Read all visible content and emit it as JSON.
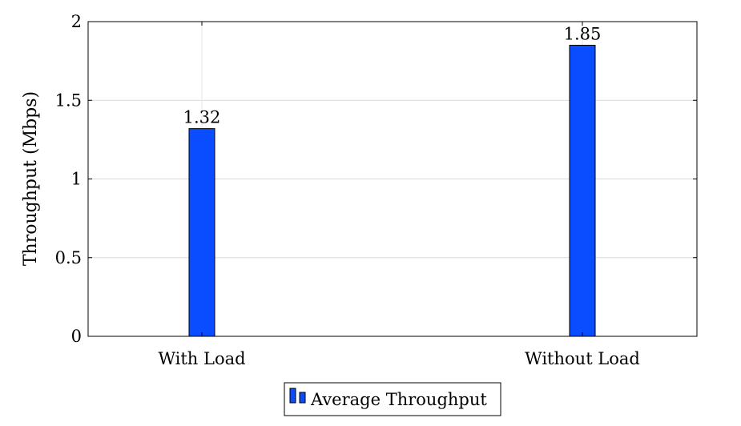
{
  "chart_data": {
    "type": "bar",
    "categories": [
      "With Load",
      "Without Load"
    ],
    "series": [
      {
        "name": "Average Throughput",
        "values": [
          1.32,
          1.85
        ],
        "color": "#0a4cff"
      }
    ],
    "data_labels": [
      "1.32",
      "1.85"
    ],
    "xlabel": "",
    "ylabel": "Throughput (Mbps)",
    "ylim": [
      0,
      2
    ],
    "yticks": [
      0,
      0.5,
      1,
      1.5,
      2
    ],
    "ytick_labels": [
      "0",
      "0.5",
      "1",
      "1.5",
      "2"
    ],
    "grid": true,
    "legend_position": "bottom-center"
  }
}
